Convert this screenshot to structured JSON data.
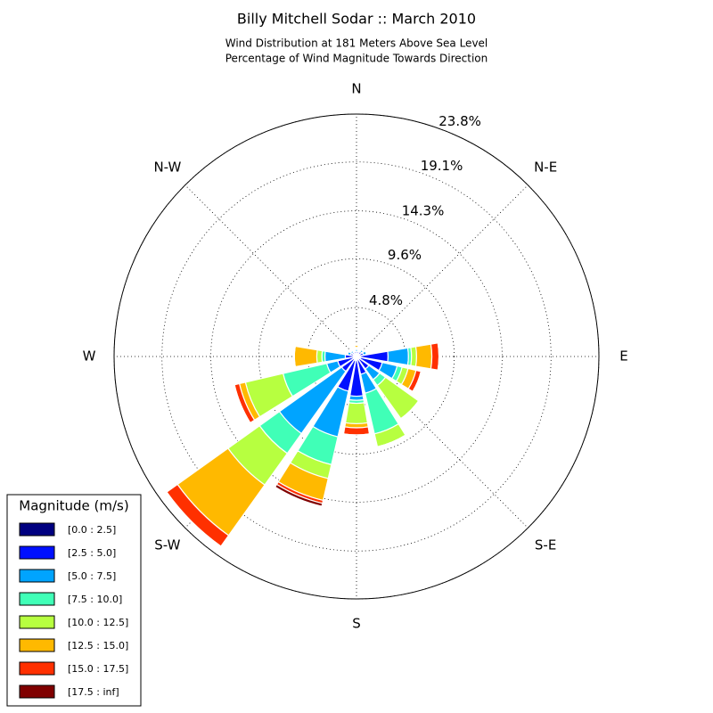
{
  "chart_data": {
    "type": "windrose",
    "title": "Billy Mitchell Sodar :: March 2010",
    "subtitle": [
      "Wind Distribution at 181 Meters Above Sea Level",
      "Percentage of Wind Magnitude Towards Direction"
    ],
    "categories": [
      "N",
      null,
      "N-E",
      null,
      "E",
      null,
      "S-E",
      null,
      "S",
      null,
      "S-W",
      null,
      "W",
      null,
      "N-W",
      null
    ],
    "legend_title": "Magnitude (m/s)",
    "legend_position": "lower left",
    "ylim": [
      0,
      23.8
    ],
    "yticks": [
      {
        "value": 4.8,
        "label": "4.8%"
      },
      {
        "value": 9.6,
        "label": "9.6%"
      },
      {
        "value": 14.3,
        "label": "14.3%"
      },
      {
        "value": 19.1,
        "label": "19.1%"
      },
      {
        "value": 23.8,
        "label": "23.8%"
      }
    ],
    "grid": true,
    "series": [
      {
        "name": "[0.0 : 2.5]",
        "color": "#000080",
        "values": [
          0.3,
          0.3,
          0.3,
          0.3,
          0.4,
          0.4,
          0.3,
          0.3,
          0.4,
          0.4,
          0.3,
          0.3,
          0.3,
          0.3,
          0.3,
          0.3
        ]
      },
      {
        "name": "[2.5 : 5.0]",
        "color": "#0010ff",
        "values": [
          0.2,
          0.2,
          0.3,
          0.4,
          2.7,
          2.2,
          1.2,
          1.5,
          3.5,
          3.1,
          1.5,
          1.6,
          0.8,
          0.3,
          0.2,
          0.2
        ]
      },
      {
        "name": "[5.0 : 7.5]",
        "color": "#00a4ff",
        "values": [
          0.2,
          0.1,
          0.2,
          0.3,
          2.0,
          1.5,
          1.3,
          1.9,
          0.4,
          4.6,
          7.5,
          1.1,
          2.0,
          0.3,
          0.2,
          0.1
        ]
      },
      {
        "name": "[7.5 : 10.0]",
        "color": "#40ffb7",
        "values": [
          0.1,
          0.1,
          0.1,
          0.1,
          0.3,
          0.5,
          0.7,
          4.1,
          0.3,
          2.8,
          2.4,
          4.4,
          0.3,
          0.1,
          0.1,
          0.1
        ]
      },
      {
        "name": "[10.0 : 12.5]",
        "color": "#b7ff40",
        "values": [
          0.1,
          0.1,
          0.1,
          0.1,
          0.5,
          0.6,
          4.0,
          1.3,
          2.0,
          1.4,
          3.8,
          3.8,
          0.5,
          0.1,
          0.1,
          0.1
        ]
      },
      {
        "name": "[12.5 : 15.0]",
        "color": "#ffb900",
        "values": [
          0.2,
          0,
          0,
          0,
          1.5,
          0.8,
          0,
          0,
          0.4,
          2.2,
          6.1,
          0.6,
          2.2,
          0,
          0,
          0
        ]
      },
      {
        "name": "[15.0 : 17.5]",
        "color": "#ff3000",
        "values": [
          0,
          0,
          0,
          0,
          0.7,
          0.5,
          0,
          0,
          0.7,
          0.3,
          1.3,
          0.5,
          0,
          0,
          0,
          0
        ]
      },
      {
        "name": "[17.5 : inf]",
        "color": "#800000",
        "values": [
          0,
          0,
          0,
          0,
          0,
          0,
          0,
          0,
          0,
          0.3,
          0,
          0,
          0,
          0,
          0,
          0
        ]
      }
    ]
  }
}
